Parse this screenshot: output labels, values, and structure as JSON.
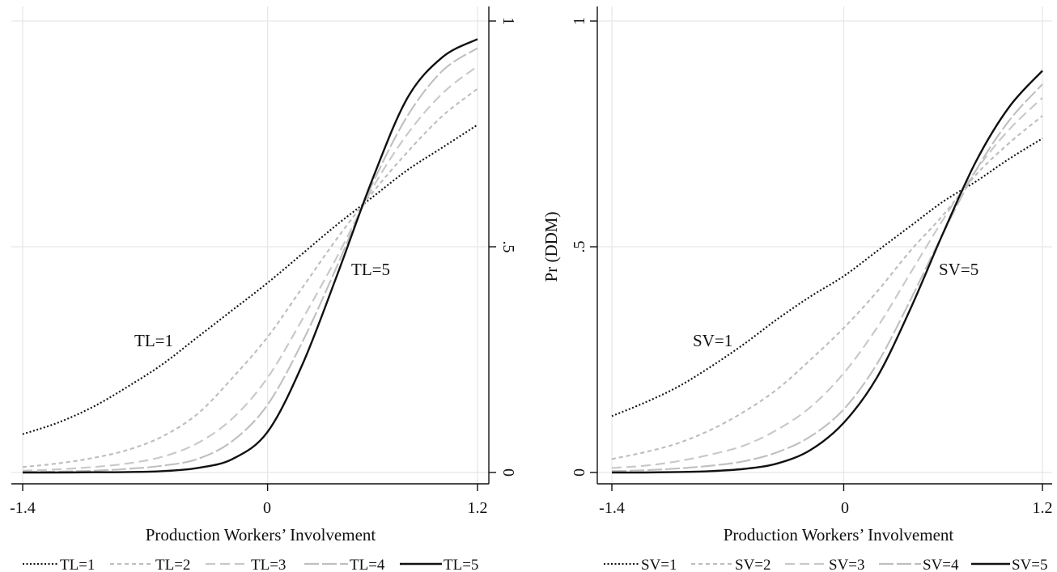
{
  "chart_data": [
    {
      "type": "line",
      "title": "",
      "xlabel": "Production Workers’ Involvement",
      "ylabel": "",
      "xlim": [
        -1.4,
        1.2
      ],
      "ylim": [
        0,
        1
      ],
      "x_ticks": [
        "-1.4",
        "0",
        "1.2"
      ],
      "y_ticks": [
        ".5",
        "1",
        "0"
      ],
      "y_axis_side": "right",
      "grid": true,
      "legend_position": "bottom",
      "x": [
        -1.4,
        -1.2,
        -1.0,
        -0.8,
        -0.6,
        -0.4,
        -0.2,
        0.0,
        0.2,
        0.4,
        0.6,
        0.8,
        1.0,
        1.2
      ],
      "series": [
        {
          "name": "TL=1",
          "style": "dotted",
          "color": "#111111",
          "values": [
            0.085,
            0.11,
            0.145,
            0.19,
            0.24,
            0.3,
            0.36,
            0.42,
            0.485,
            0.55,
            0.61,
            0.67,
            0.72,
            0.77
          ]
        },
        {
          "name": "TL=2",
          "style": "short-dash",
          "color": "#bdbdbd",
          "values": [
            0.012,
            0.02,
            0.032,
            0.05,
            0.08,
            0.13,
            0.21,
            0.3,
            0.41,
            0.52,
            0.62,
            0.71,
            0.79,
            0.85
          ]
        },
        {
          "name": "TL=3",
          "style": "long-dash",
          "color": "#c8c8c8",
          "values": [
            0.004,
            0.007,
            0.012,
            0.02,
            0.035,
            0.065,
            0.12,
            0.21,
            0.34,
            0.48,
            0.63,
            0.75,
            0.84,
            0.9
          ]
        },
        {
          "name": "TL=4",
          "style": "long-dash",
          "color": "#bfbfbf",
          "values": [
            0.001,
            0.002,
            0.004,
            0.008,
            0.015,
            0.03,
            0.07,
            0.15,
            0.29,
            0.46,
            0.64,
            0.79,
            0.89,
            0.94
          ]
        },
        {
          "name": "TL=5",
          "style": "solid",
          "color": "#111111",
          "values": [
            0.0,
            0.0,
            0.0005,
            0.001,
            0.003,
            0.01,
            0.03,
            0.09,
            0.24,
            0.44,
            0.65,
            0.83,
            0.92,
            0.96
          ]
        }
      ],
      "annotations": [
        {
          "text": "TL=1",
          "x": -0.7,
          "y": 0.29
        },
        {
          "text": "TL=5",
          "x": 0.58,
          "y": 0.44
        }
      ]
    },
    {
      "type": "line",
      "title": "",
      "xlabel": "Production Workers’ Involvement",
      "ylabel": "Pr (DDM)",
      "xlim": [
        -1.4,
        1.2
      ],
      "ylim": [
        0,
        1
      ],
      "x_ticks": [
        "-1.4",
        "0",
        "1.2"
      ],
      "y_ticks": [
        "0",
        ".5",
        "1"
      ],
      "y_axis_side": "left",
      "grid": true,
      "legend_position": "bottom",
      "x": [
        -1.4,
        -1.2,
        -1.0,
        -0.8,
        -0.6,
        -0.4,
        -0.2,
        0.0,
        0.2,
        0.4,
        0.6,
        0.8,
        1.0,
        1.2
      ],
      "series": [
        {
          "name": "SV=1",
          "style": "dotted",
          "color": "#111111",
          "values": [
            0.125,
            0.155,
            0.19,
            0.235,
            0.285,
            0.34,
            0.39,
            0.435,
            0.49,
            0.545,
            0.6,
            0.645,
            0.695,
            0.74
          ]
        },
        {
          "name": "SV=2",
          "style": "short-dash",
          "color": "#bdbdbd",
          "values": [
            0.03,
            0.045,
            0.065,
            0.095,
            0.135,
            0.185,
            0.25,
            0.32,
            0.4,
            0.49,
            0.57,
            0.66,
            0.73,
            0.79
          ]
        },
        {
          "name": "SV=3",
          "style": "long-dash",
          "color": "#c8c8c8",
          "values": [
            0.01,
            0.015,
            0.025,
            0.04,
            0.06,
            0.095,
            0.145,
            0.22,
            0.32,
            0.44,
            0.56,
            0.67,
            0.76,
            0.83
          ]
        },
        {
          "name": "SV=4",
          "style": "long-dash",
          "color": "#bfbfbf",
          "values": [
            0.003,
            0.005,
            0.009,
            0.015,
            0.025,
            0.045,
            0.08,
            0.14,
            0.24,
            0.38,
            0.53,
            0.67,
            0.78,
            0.86
          ]
        },
        {
          "name": "SV=5",
          "style": "solid",
          "color": "#111111",
          "values": [
            0.0,
            0.0,
            0.001,
            0.003,
            0.008,
            0.02,
            0.05,
            0.11,
            0.21,
            0.36,
            0.53,
            0.69,
            0.81,
            0.89
          ]
        }
      ],
      "annotations": [
        {
          "text": "SV=1",
          "x": -0.78,
          "y": 0.29
        },
        {
          "text": "SV=5",
          "x": 0.75,
          "y": 0.45
        }
      ]
    }
  ]
}
